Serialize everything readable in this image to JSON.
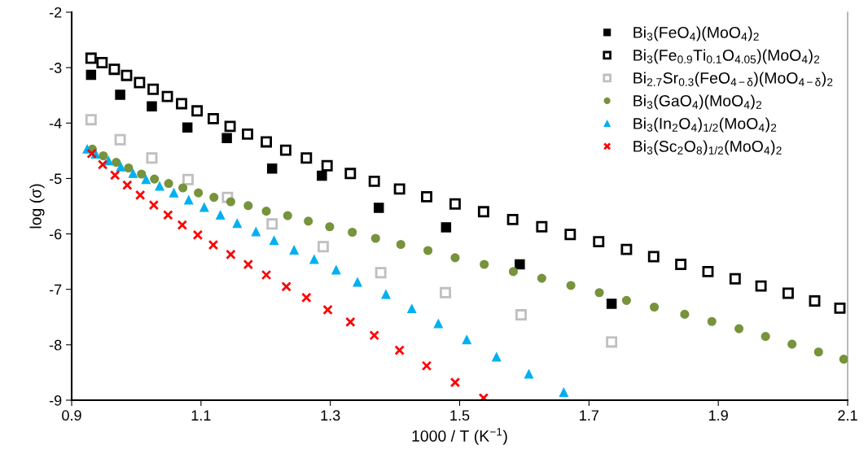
{
  "chart_data": {
    "type": "scatter",
    "xlabel": "1000 / T (K$^{−1}$)",
    "ylabel": "log (σ)",
    "xlim": [
      0.9,
      2.1
    ],
    "xticks": [
      0.9,
      1.1,
      1.3,
      1.5,
      1.7,
      1.9,
      2.1
    ],
    "ylim": [
      -9,
      -2
    ],
    "yticks": [
      -9,
      -8,
      -7,
      -6,
      -5,
      -4,
      -3,
      -2
    ],
    "grid": false,
    "legend": "top right",
    "series": [
      {
        "name": "Bi$_{3}$(FeO$_{4}$)(MoO$_{4}$)$_{2}$",
        "color": "#000000",
        "marker": "square",
        "x": [
          0.93,
          0.975,
          1.024,
          1.079,
          1.14,
          1.21,
          1.287,
          1.375,
          1.479,
          1.593,
          1.735
        ],
        "values": [
          -3.13,
          -3.49,
          -3.7,
          -4.08,
          -4.27,
          -4.82,
          -4.95,
          -5.53,
          -5.88,
          -6.55,
          -7.26
        ]
      },
      {
        "name": "Bi$_{3}$(Fe$_{0.9}$Ti$_{0.1}$O$_{4.05}$)(MoO$_{4}$)$_{2}$",
        "color": "#000000",
        "marker": "square-open",
        "x": [
          0.93,
          0.947,
          0.966,
          0.985,
          1.005,
          1.026,
          1.048,
          1.07,
          1.094,
          1.119,
          1.145,
          1.172,
          1.201,
          1.231,
          1.263,
          1.295,
          1.331,
          1.368,
          1.407,
          1.449,
          1.493,
          1.537,
          1.582,
          1.627,
          1.671,
          1.715,
          1.758,
          1.8,
          1.842,
          1.884,
          1.926,
          1.966,
          2.008,
          2.049,
          2.088
        ],
        "values": [
          -2.83,
          -2.91,
          -3.03,
          -3.14,
          -3.27,
          -3.39,
          -3.52,
          -3.65,
          -3.78,
          -3.92,
          -4.06,
          -4.2,
          -4.34,
          -4.49,
          -4.63,
          -4.77,
          -4.91,
          -5.05,
          -5.19,
          -5.33,
          -5.46,
          -5.6,
          -5.74,
          -5.87,
          -6.01,
          -6.14,
          -6.28,
          -6.41,
          -6.55,
          -6.68,
          -6.81,
          -6.94,
          -7.07,
          -7.21,
          -7.34
        ]
      },
      {
        "name": "Bi$_{2.7}$Sr$_{0.3}$(FeO$_{4−δ}$)(MoO$_{4−δ}$)$_{2}$",
        "color": "#bfbfbf",
        "marker": "square-open",
        "x": [
          0.93,
          0.975,
          1.024,
          1.08,
          1.141,
          1.21,
          1.289,
          1.378,
          1.478,
          1.595,
          1.735
        ],
        "values": [
          -3.94,
          -4.3,
          -4.63,
          -5.02,
          -5.34,
          -5.82,
          -6.23,
          -6.7,
          -7.06,
          -7.46,
          -7.95
        ]
      },
      {
        "name": "Bi$_{3}$(GaO$_{4}$)(MoO$_{4}$)$_{2}$",
        "color": "#77933c",
        "marker": "circle",
        "x": [
          0.932,
          0.949,
          0.969,
          0.988,
          1.008,
          1.028,
          1.05,
          1.072,
          1.096,
          1.12,
          1.146,
          1.173,
          1.201,
          1.234,
          1.266,
          1.299,
          1.334,
          1.37,
          1.409,
          1.451,
          1.493,
          1.538,
          1.583,
          1.627,
          1.672,
          1.716,
          1.758,
          1.801,
          1.848,
          1.89,
          1.932,
          1.973,
          2.014,
          2.055,
          2.094
        ],
        "values": [
          -4.47,
          -4.59,
          -4.71,
          -4.81,
          -4.92,
          -5.01,
          -5.09,
          -5.17,
          -5.26,
          -5.34,
          -5.42,
          -5.49,
          -5.59,
          -5.67,
          -5.77,
          -5.87,
          -5.97,
          -6.08,
          -6.19,
          -6.3,
          -6.43,
          -6.55,
          -6.68,
          -6.8,
          -6.93,
          -7.06,
          -7.2,
          -7.32,
          -7.45,
          -7.58,
          -7.71,
          -7.85,
          -7.99,
          -8.13,
          -8.26
        ]
      },
      {
        "name": "Bi$_{3}$(In$_{2}$O$_{4}$)$_{1/2}$(MoO$_{4}$)$_{2}$",
        "color": "#00b0f0",
        "marker": "triangle",
        "x": [
          0.924,
          0.937,
          0.957,
          0.976,
          0.995,
          1.015,
          1.036,
          1.058,
          1.081,
          1.105,
          1.13,
          1.156,
          1.185,
          1.213,
          1.244,
          1.275,
          1.309,
          1.342,
          1.386,
          1.426,
          1.467,
          1.511,
          1.557,
          1.607,
          1.661
        ],
        "values": [
          -4.47,
          -4.56,
          -4.68,
          -4.79,
          -4.91,
          -5.02,
          -5.14,
          -5.26,
          -5.39,
          -5.52,
          -5.66,
          -5.81,
          -5.96,
          -6.12,
          -6.29,
          -6.46,
          -6.65,
          -6.87,
          -7.09,
          -7.35,
          -7.62,
          -7.91,
          -8.22,
          -8.53,
          -8.86
        ]
      },
      {
        "name": "Bi$_{3}$(Sc$_{2}$O$_{8}$)$_{1/2}$(MoO$_{4}$)$_{2}$",
        "color": "#ff0000",
        "marker": "cross",
        "x": [
          0.931,
          0.948,
          0.967,
          0.986,
          1.006,
          1.027,
          1.049,
          1.071,
          1.095,
          1.119,
          1.146,
          1.173,
          1.201,
          1.232,
          1.263,
          1.296,
          1.331,
          1.368,
          1.407,
          1.449,
          1.493,
          1.537
        ],
        "values": [
          -4.55,
          -4.75,
          -4.94,
          -5.12,
          -5.3,
          -5.48,
          -5.66,
          -5.84,
          -6.02,
          -6.2,
          -6.37,
          -6.55,
          -6.74,
          -6.95,
          -7.15,
          -7.37,
          -7.59,
          -7.83,
          -8.1,
          -8.38,
          -8.68,
          -8.96
        ]
      }
    ]
  }
}
